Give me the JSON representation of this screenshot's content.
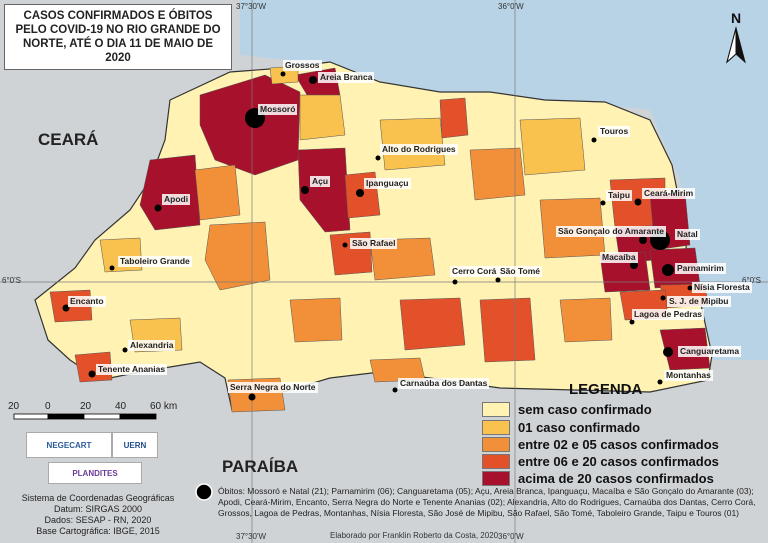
{
  "title": "CASOS CONFIRMADOS E ÓBITOS PELO COVID-19 NO RIO GRANDE DO NORTE, ATÉ O DIA 11 DE MAIO DE 2020",
  "neighbors": {
    "ceara": "CEARÁ",
    "paraiba": "PARAÍBA"
  },
  "coordinates": {
    "top_left": "37°30'W",
    "top_right": "36°0'W",
    "bottom_left": "37°30'W",
    "bottom_right": "36°0'W",
    "left_lat": "6°0'S",
    "right_lat": "6°0'S"
  },
  "north_label": "N",
  "cities": [
    "Grossos",
    "Areia Branca",
    "Mossoró",
    "Touros",
    "Alto do Rodrigues",
    "Açu",
    "Ipanguaçu",
    "Apodi",
    "Taipu",
    "Ceará-Mirim",
    "Natal",
    "São Gonçalo do Amarante",
    "São Rafael",
    "Macaíba",
    "Parnamirim",
    "Taboleiro Grande",
    "Cerro Corá",
    "São Tomé",
    "Nísia Floresta",
    "Encanto",
    "S. J. de Mipibu",
    "Lagoa de Pedras",
    "Alexandria",
    "Tenente Ananias",
    "Canguaretama",
    "Montanhas",
    "Serra Negra do Norte",
    "Carnaúba dos Dantas"
  ],
  "legend": {
    "title": "LEGENDA",
    "items": [
      {
        "label": "sem caso confirmado",
        "color": "#fff2b3"
      },
      {
        "label": "01 caso confirmado",
        "color": "#f9c14d"
      },
      {
        "label": "entre 02 e 05 casos confirmados",
        "color": "#f2903a"
      },
      {
        "label": "entre 06 e 20 casos confirmados",
        "color": "#e3512a"
      },
      {
        "label": "acima de 20 casos confirmados",
        "color": "#a8112b"
      }
    ]
  },
  "scale": {
    "ticks": [
      "20",
      "0",
      "20",
      "40",
      "60 km"
    ]
  },
  "logos": {
    "negecart": "NEGECART",
    "uern": "UERN",
    "plandites": "PLANDITES"
  },
  "footer_info": [
    "Sistema de Coordenadas Geográficas",
    "Datum: SIRGAS 2000",
    "Dados: SESAP - RN, 2020",
    "Base Cartográfica: IBGE, 2015"
  ],
  "obitos_text": "Óbitos: Mossoró e Natal (21); Parnamirim (06); Canguaretama (05); Açu, Areia Branca, Ipanguaçu, Macaíba e São Gonçalo do Amarante (03); Apodi, Ceará-Mirim, Encanto, Serra Negra do Norte e Tenente Ananias (02); Alexandria, Alto do Rodrigues, Carnaúba dos Dantas, Cerro Corá, Grossos, Lagoa de Pedras, Montanhas, Nísia Floresta, São José de Mipibu, São Rafael, São Tomé, Taboleiro Grande, Taipu e Touros (01)",
  "credit": "Elaborado por Franklin Roberto da Costa, 2020",
  "colors": {
    "sea": "#b9d3e6",
    "land_neighbor": "#cfd3d6",
    "graticule": "#7a7a7a",
    "black": "#000000"
  }
}
